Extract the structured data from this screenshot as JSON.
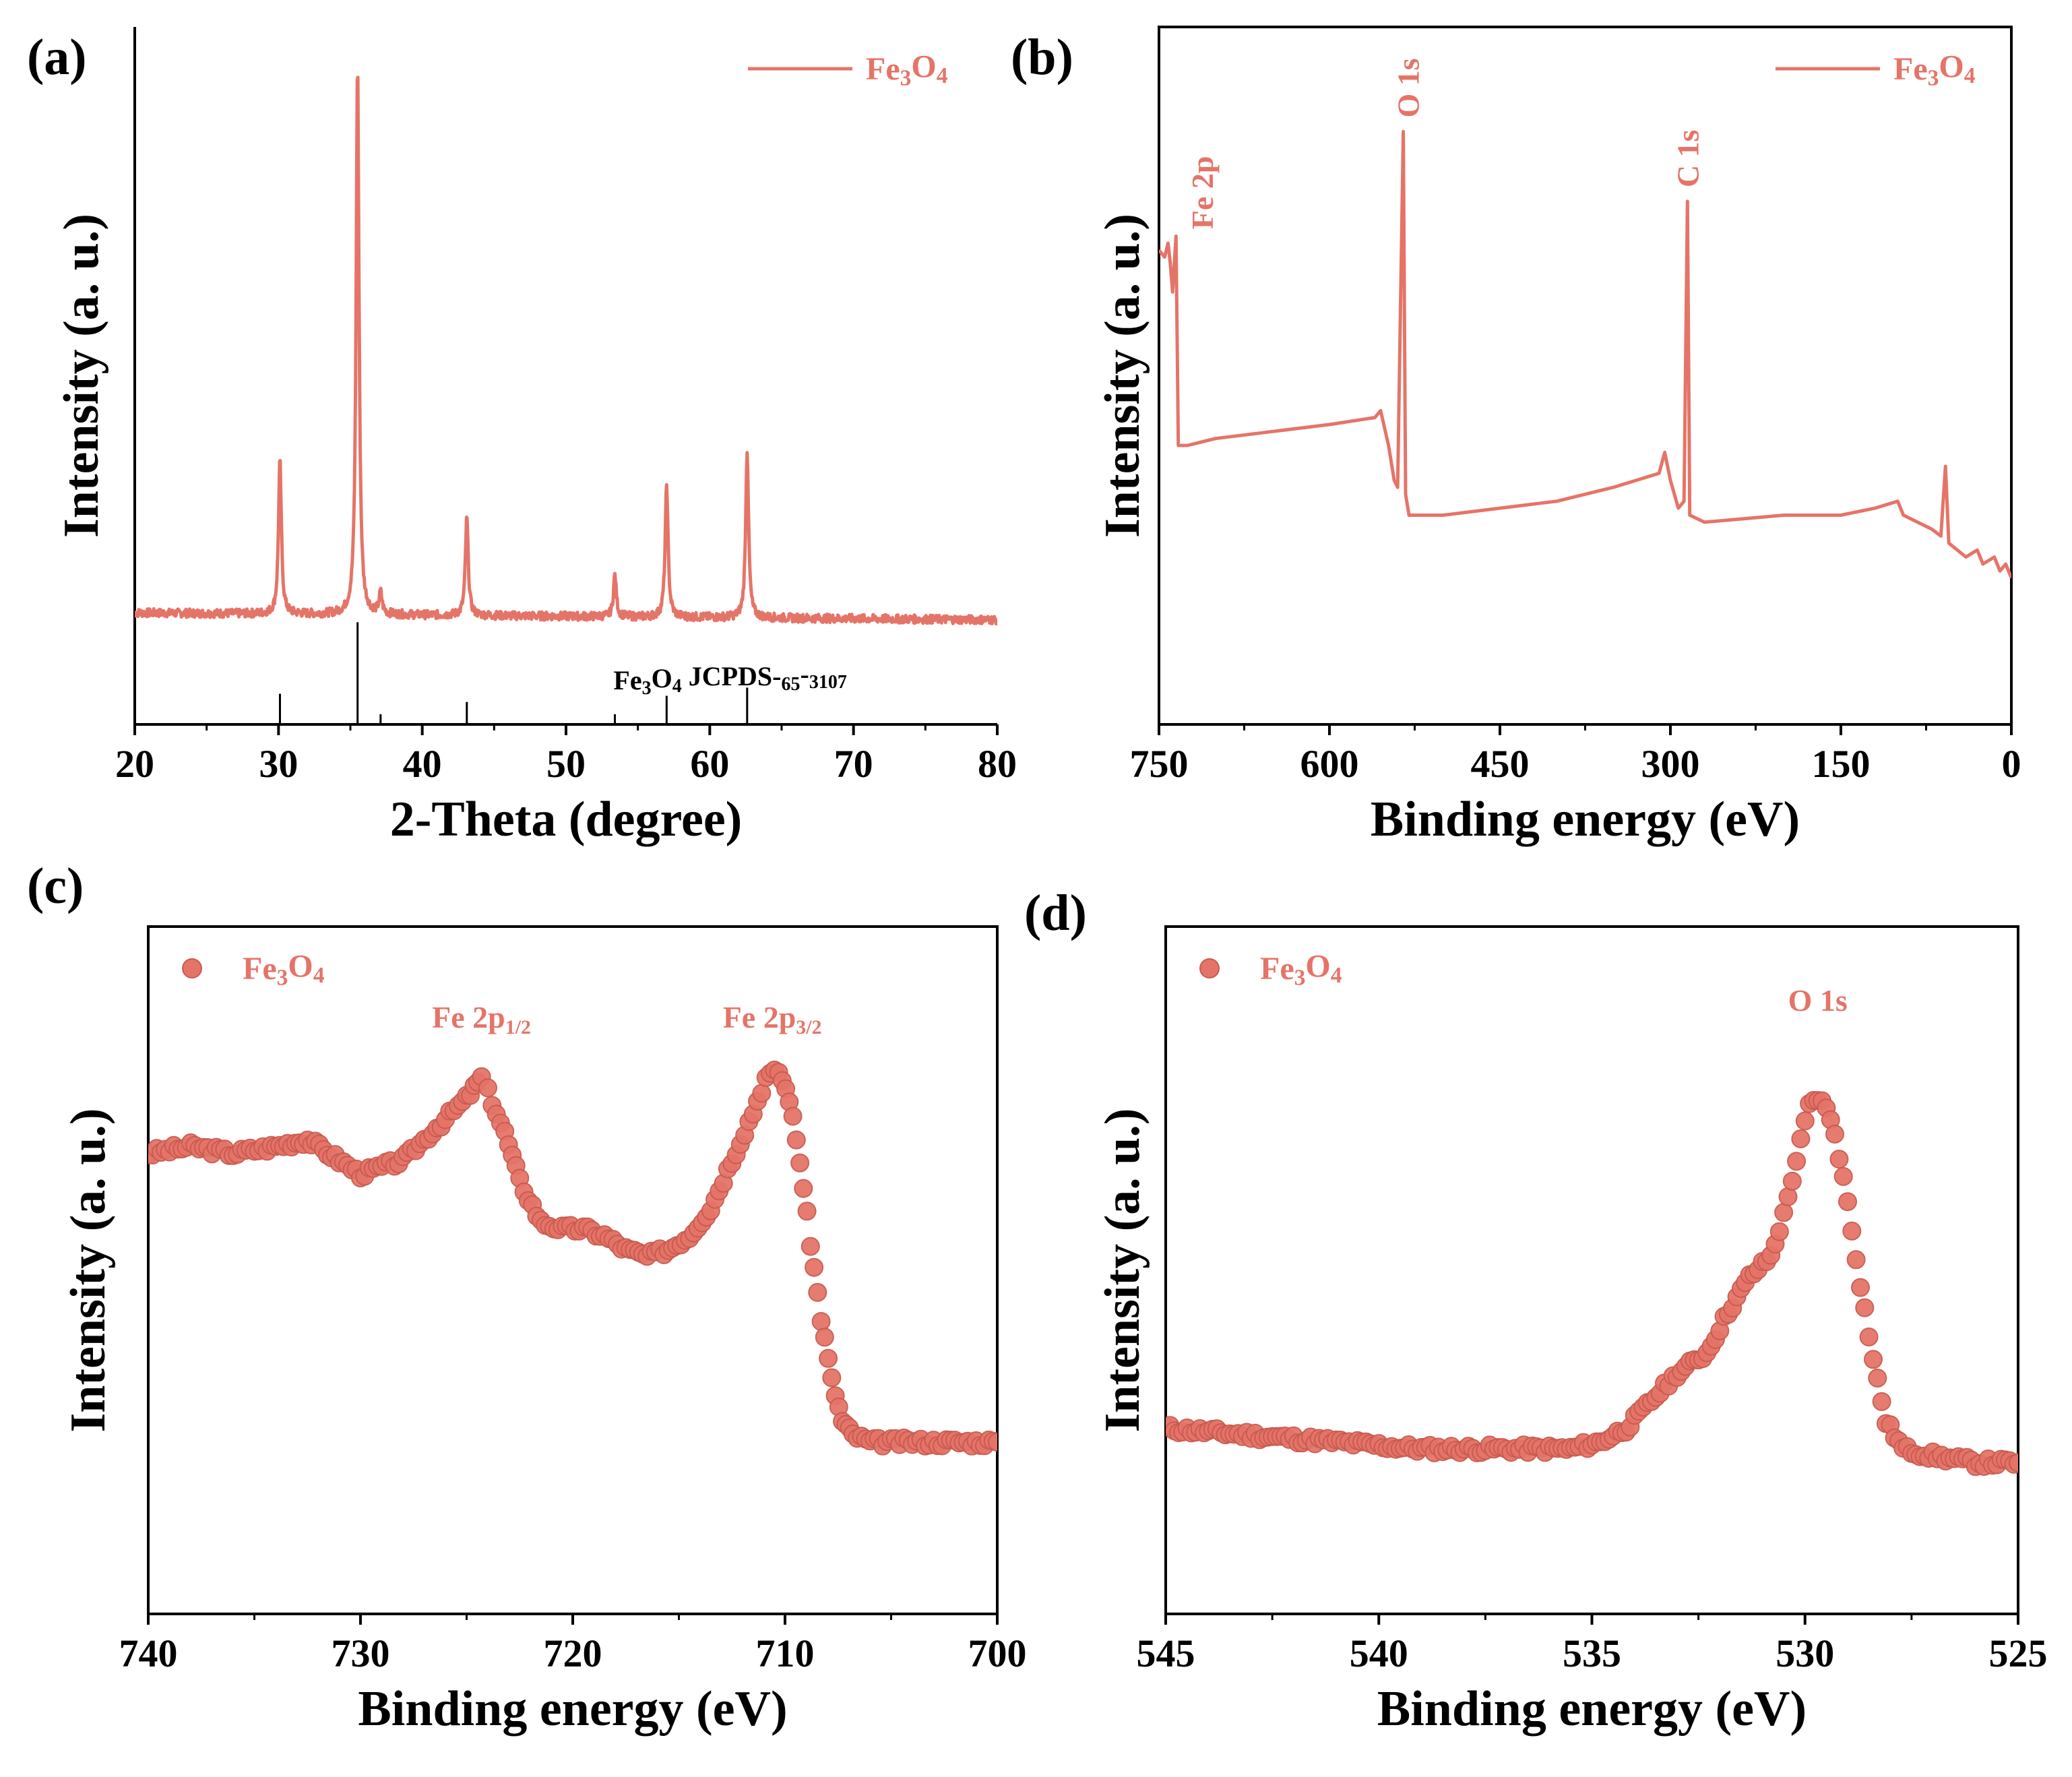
{
  "figure": {
    "color": "#E57468",
    "axis_color": "#000000"
  },
  "chart_data": [
    {
      "id": "a",
      "type": "line",
      "panel_label": "(a)",
      "xlabel": "2-Theta (degree)",
      "ylabel": "Intensity (a. u.)",
      "xlim": [
        20,
        80
      ],
      "ylim": [
        0,
        1
      ],
      "xticks": [
        20,
        30,
        40,
        50,
        60,
        70,
        80
      ],
      "legend": "Fe3O4",
      "baseline": 0.16,
      "peaks": [
        {
          "x": 30.1,
          "y": 0.38
        },
        {
          "x": 35.5,
          "y": 0.95
        },
        {
          "x": 37.1,
          "y": 0.19
        },
        {
          "x": 43.1,
          "y": 0.3
        },
        {
          "x": 53.4,
          "y": 0.22
        },
        {
          "x": 57.0,
          "y": 0.35
        },
        {
          "x": 62.6,
          "y": 0.4
        },
        {
          "x": 74.0,
          "y": 0.16
        }
      ],
      "reference": {
        "label": "Fe3O4 JCPDS-65-3107",
        "lines": [
          {
            "x": 30.1,
            "h": 0.3
          },
          {
            "x": 35.5,
            "h": 1.0
          },
          {
            "x": 37.1,
            "h": 0.1
          },
          {
            "x": 43.1,
            "h": 0.22
          },
          {
            "x": 53.4,
            "h": 0.1
          },
          {
            "x": 57.0,
            "h": 0.28
          },
          {
            "x": 62.6,
            "h": 0.36
          }
        ]
      }
    },
    {
      "id": "b",
      "type": "line",
      "panel_label": "(b)",
      "xlabel": "Binding energy (eV)",
      "ylabel": "Intensity (a. u.)",
      "xlim": [
        750,
        0
      ],
      "ylim": [
        0,
        1
      ],
      "xticks": [
        750,
        600,
        450,
        300,
        150,
        0
      ],
      "legend": "Fe3O4",
      "points": [
        [
          750,
          0.68
        ],
        [
          745,
          0.67
        ],
        [
          742,
          0.69
        ],
        [
          740,
          0.66
        ],
        [
          738,
          0.62
        ],
        [
          735,
          0.7
        ],
        [
          733,
          0.4
        ],
        [
          725,
          0.4
        ],
        [
          700,
          0.41
        ],
        [
          650,
          0.42
        ],
        [
          600,
          0.43
        ],
        [
          560,
          0.44
        ],
        [
          555,
          0.45
        ],
        [
          548,
          0.4
        ],
        [
          543,
          0.35
        ],
        [
          540,
          0.34
        ],
        [
          535,
          0.85
        ],
        [
          533,
          0.33
        ],
        [
          530,
          0.3
        ],
        [
          500,
          0.3
        ],
        [
          450,
          0.31
        ],
        [
          400,
          0.32
        ],
        [
          350,
          0.34
        ],
        [
          310,
          0.36
        ],
        [
          305,
          0.39
        ],
        [
          300,
          0.35
        ],
        [
          293,
          0.31
        ],
        [
          288,
          0.32
        ],
        [
          285,
          0.75
        ],
        [
          283,
          0.3
        ],
        [
          270,
          0.29
        ],
        [
          200,
          0.3
        ],
        [
          150,
          0.3
        ],
        [
          120,
          0.31
        ],
        [
          100,
          0.32
        ],
        [
          95,
          0.3
        ],
        [
          70,
          0.28
        ],
        [
          62,
          0.27
        ],
        [
          58,
          0.37
        ],
        [
          55,
          0.26
        ],
        [
          40,
          0.24
        ],
        [
          30,
          0.25
        ],
        [
          25,
          0.23
        ],
        [
          15,
          0.24
        ],
        [
          10,
          0.22
        ],
        [
          5,
          0.23
        ],
        [
          0,
          0.21
        ]
      ],
      "annotations": [
        {
          "text": "Fe 2p",
          "x": 712
        },
        {
          "text": "O 1s",
          "x": 531
        },
        {
          "text": "C 1s",
          "x": 285
        }
      ]
    },
    {
      "id": "c",
      "type": "scatter",
      "panel_label": "(c)",
      "xlabel": "Binding energy (eV)",
      "ylabel": "Intensity (a. u.)",
      "xlim": [
        740,
        700
      ],
      "ylim": [
        0,
        1
      ],
      "xticks": [
        740,
        730,
        720,
        710,
        700
      ],
      "legend": "Fe3O4",
      "points": [
        [
          740,
          0.67
        ],
        [
          738,
          0.68
        ],
        [
          736,
          0.67
        ],
        [
          734,
          0.68
        ],
        [
          732.5,
          0.69
        ],
        [
          731,
          0.66
        ],
        [
          730,
          0.64
        ],
        [
          729,
          0.65
        ],
        [
          728,
          0.66
        ],
        [
          727,
          0.69
        ],
        [
          726,
          0.72
        ],
        [
          725,
          0.75
        ],
        [
          724.3,
          0.78
        ],
        [
          724,
          0.76
        ],
        [
          723.2,
          0.7
        ],
        [
          722.5,
          0.63
        ],
        [
          721.5,
          0.57
        ],
        [
          720.5,
          0.56
        ],
        [
          719.5,
          0.56
        ],
        [
          718.5,
          0.55
        ],
        [
          717.5,
          0.53
        ],
        [
          716.5,
          0.52
        ],
        [
          715.5,
          0.53
        ],
        [
          714.5,
          0.55
        ],
        [
          713.5,
          0.59
        ],
        [
          712.5,
          0.66
        ],
        [
          711.5,
          0.73
        ],
        [
          710.9,
          0.78
        ],
        [
          710.3,
          0.79
        ],
        [
          709.8,
          0.75
        ],
        [
          709.3,
          0.66
        ],
        [
          708.8,
          0.54
        ],
        [
          708.3,
          0.43
        ],
        [
          707.8,
          0.34
        ],
        [
          707.3,
          0.28
        ],
        [
          706.8,
          0.26
        ],
        [
          706,
          0.25
        ],
        [
          704,
          0.25
        ],
        [
          702,
          0.25
        ],
        [
          700,
          0.25
        ]
      ],
      "annotations": [
        {
          "text": "Fe 2p",
          "sub": "1/2",
          "x": 724.3
        },
        {
          "text": "Fe 2p",
          "sub": "3/2",
          "x": 710.6
        }
      ]
    },
    {
      "id": "d",
      "type": "scatter",
      "panel_label": "(d)",
      "xlabel": "Binding energy (eV)",
      "ylabel": "Intensity (a. u.)",
      "xlim": [
        545,
        525
      ],
      "ylim": [
        0,
        1
      ],
      "xticks": [
        545,
        540,
        535,
        530,
        525
      ],
      "legend": "Fe3O4",
      "points": [
        [
          545,
          0.27
        ],
        [
          543,
          0.26
        ],
        [
          541,
          0.25
        ],
        [
          539,
          0.24
        ],
        [
          537,
          0.24
        ],
        [
          535.5,
          0.24
        ],
        [
          534.8,
          0.25
        ],
        [
          534.2,
          0.27
        ],
        [
          533.6,
          0.31
        ],
        [
          533,
          0.35
        ],
        [
          532.3,
          0.38
        ],
        [
          531.8,
          0.44
        ],
        [
          531.3,
          0.49
        ],
        [
          530.8,
          0.52
        ],
        [
          530.5,
          0.58
        ],
        [
          530.2,
          0.66
        ],
        [
          529.9,
          0.74
        ],
        [
          529.6,
          0.75
        ],
        [
          529.3,
          0.7
        ],
        [
          529,
          0.6
        ],
        [
          528.7,
          0.48
        ],
        [
          528.4,
          0.37
        ],
        [
          528.1,
          0.28
        ],
        [
          527.7,
          0.24
        ],
        [
          527,
          0.23
        ],
        [
          526,
          0.22
        ],
        [
          525,
          0.22
        ]
      ],
      "annotations": [
        {
          "text": "O 1s",
          "x": 529.7
        }
      ]
    }
  ]
}
